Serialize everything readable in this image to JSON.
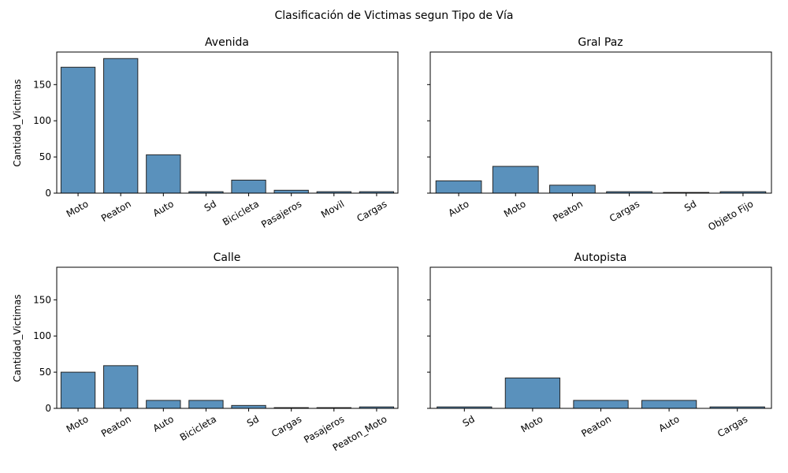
{
  "figure": {
    "title": "Clasificación de Victimas segun Tipo de Vía"
  },
  "chart_data": [
    {
      "type": "bar",
      "title": "Avenida",
      "xlabel": "",
      "ylabel": "Cantidad_Victimas",
      "categories": [
        "Moto",
        "Peaton",
        "Auto",
        "Sd",
        "Bicicleta",
        "Pasajeros",
        "Movil",
        "Cargas"
      ],
      "values": [
        174,
        186,
        53,
        2,
        18,
        4,
        2,
        2
      ],
      "ylim": [
        0,
        195
      ],
      "yticks": [
        0,
        50,
        100,
        150
      ],
      "color": "#5a91bc"
    },
    {
      "type": "bar",
      "title": "Gral Paz",
      "xlabel": "",
      "ylabel": "",
      "categories": [
        "Auto",
        "Moto",
        "Peaton",
        "Cargas",
        "Sd",
        "Objeto Fijo"
      ],
      "values": [
        17,
        37,
        11,
        2,
        1,
        2
      ],
      "ylim": [
        0,
        195
      ],
      "yticks": [
        0,
        50,
        100,
        150
      ],
      "color": "#5a91bc"
    },
    {
      "type": "bar",
      "title": "Calle",
      "xlabel": "",
      "ylabel": "Cantidad_Victimas",
      "categories": [
        "Moto",
        "Peaton",
        "Auto",
        "Bicicleta",
        "Sd",
        "Cargas",
        "Pasajeros",
        "Peaton_Moto"
      ],
      "values": [
        50,
        59,
        11,
        11,
        4,
        1,
        1,
        2
      ],
      "ylim": [
        0,
        195
      ],
      "yticks": [
        0,
        50,
        100,
        150
      ],
      "color": "#5a91bc"
    },
    {
      "type": "bar",
      "title": "Autopista",
      "xlabel": "",
      "ylabel": "",
      "categories": [
        "Sd",
        "Moto",
        "Peaton",
        "Auto",
        "Cargas"
      ],
      "values": [
        2,
        42,
        11,
        11,
        2
      ],
      "ylim": [
        0,
        195
      ],
      "yticks": [
        0,
        50,
        100,
        150
      ],
      "color": "#5a91bc"
    }
  ]
}
